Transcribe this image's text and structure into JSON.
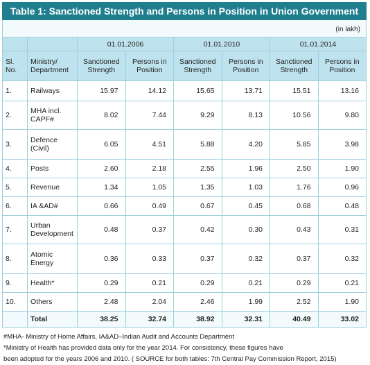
{
  "header": {
    "title": "Table 1: Sanctioned Strength and Persons in Position in Union Government",
    "unit": "(in lakh)"
  },
  "table": {
    "date_headers": [
      "01.01.2006",
      "01.01.2010",
      "01.01.2014"
    ],
    "column_headers": [
      "Sl. No.",
      "Ministry/ Department",
      "Sanctioned Strength",
      "Persons in Position",
      "Sanctioned Strength",
      "Persons in Position",
      "Sanctioned Strength",
      "Persons in Position"
    ],
    "rows": [
      [
        "1.",
        "Railways",
        "15.97",
        "14.12",
        "15.65",
        "13.71",
        "15.51",
        "13.16"
      ],
      [
        "2.",
        "MHA incl. CAPF#",
        "8.02",
        "7.44",
        "9.29",
        "8.13",
        "10.56",
        "9.80"
      ],
      [
        "3.",
        "Defence (Civil)",
        "6.05",
        "4.51",
        "5.88",
        "4.20",
        "5.85",
        "3.98"
      ],
      [
        "4.",
        "Posts",
        "2.60",
        "2.18",
        "2.55",
        "1.96",
        "2.50",
        "1.90"
      ],
      [
        "5.",
        "Revenue",
        "1.34",
        "1.05",
        "1.35",
        "1.03",
        "1.76",
        "0.96"
      ],
      [
        "6.",
        "IA &AD#",
        "0.66",
        "0.49",
        "0.67",
        "0.45",
        "0.68",
        "0.48"
      ],
      [
        "7.",
        "Urban Development",
        "0.48",
        "0.37",
        "0.42",
        "0.30",
        "0.43",
        "0.31"
      ],
      [
        "8.",
        "Atomic Energy",
        "0.36",
        "0.33",
        "0.37",
        "0.32",
        "0.37",
        "0.32"
      ],
      [
        "9.",
        "Health*",
        "0.29",
        "0.21",
        "0.29",
        "0.21",
        "0.29",
        "0.21"
      ],
      [
        "10.",
        "Others",
        "2.48",
        "2.04",
        "2.46",
        "1.99",
        "2.52",
        "1.90"
      ]
    ],
    "total": [
      "Total",
      "38.25",
      "32.74",
      "38.92",
      "32.31",
      "40.49",
      "33.02"
    ]
  },
  "footnotes": [
    "#MHA- Ministry of Home Affairs, IA&AD–Indian Audit and Accounts Department",
    "*Ministry of Health has provided data only for the year 2014. For consistency, these figures have",
    "been adopted for the years 2006 and 2010. ( SOURCE  for both tables: 7th Central Pay Commission Report, 2015)"
  ]
}
